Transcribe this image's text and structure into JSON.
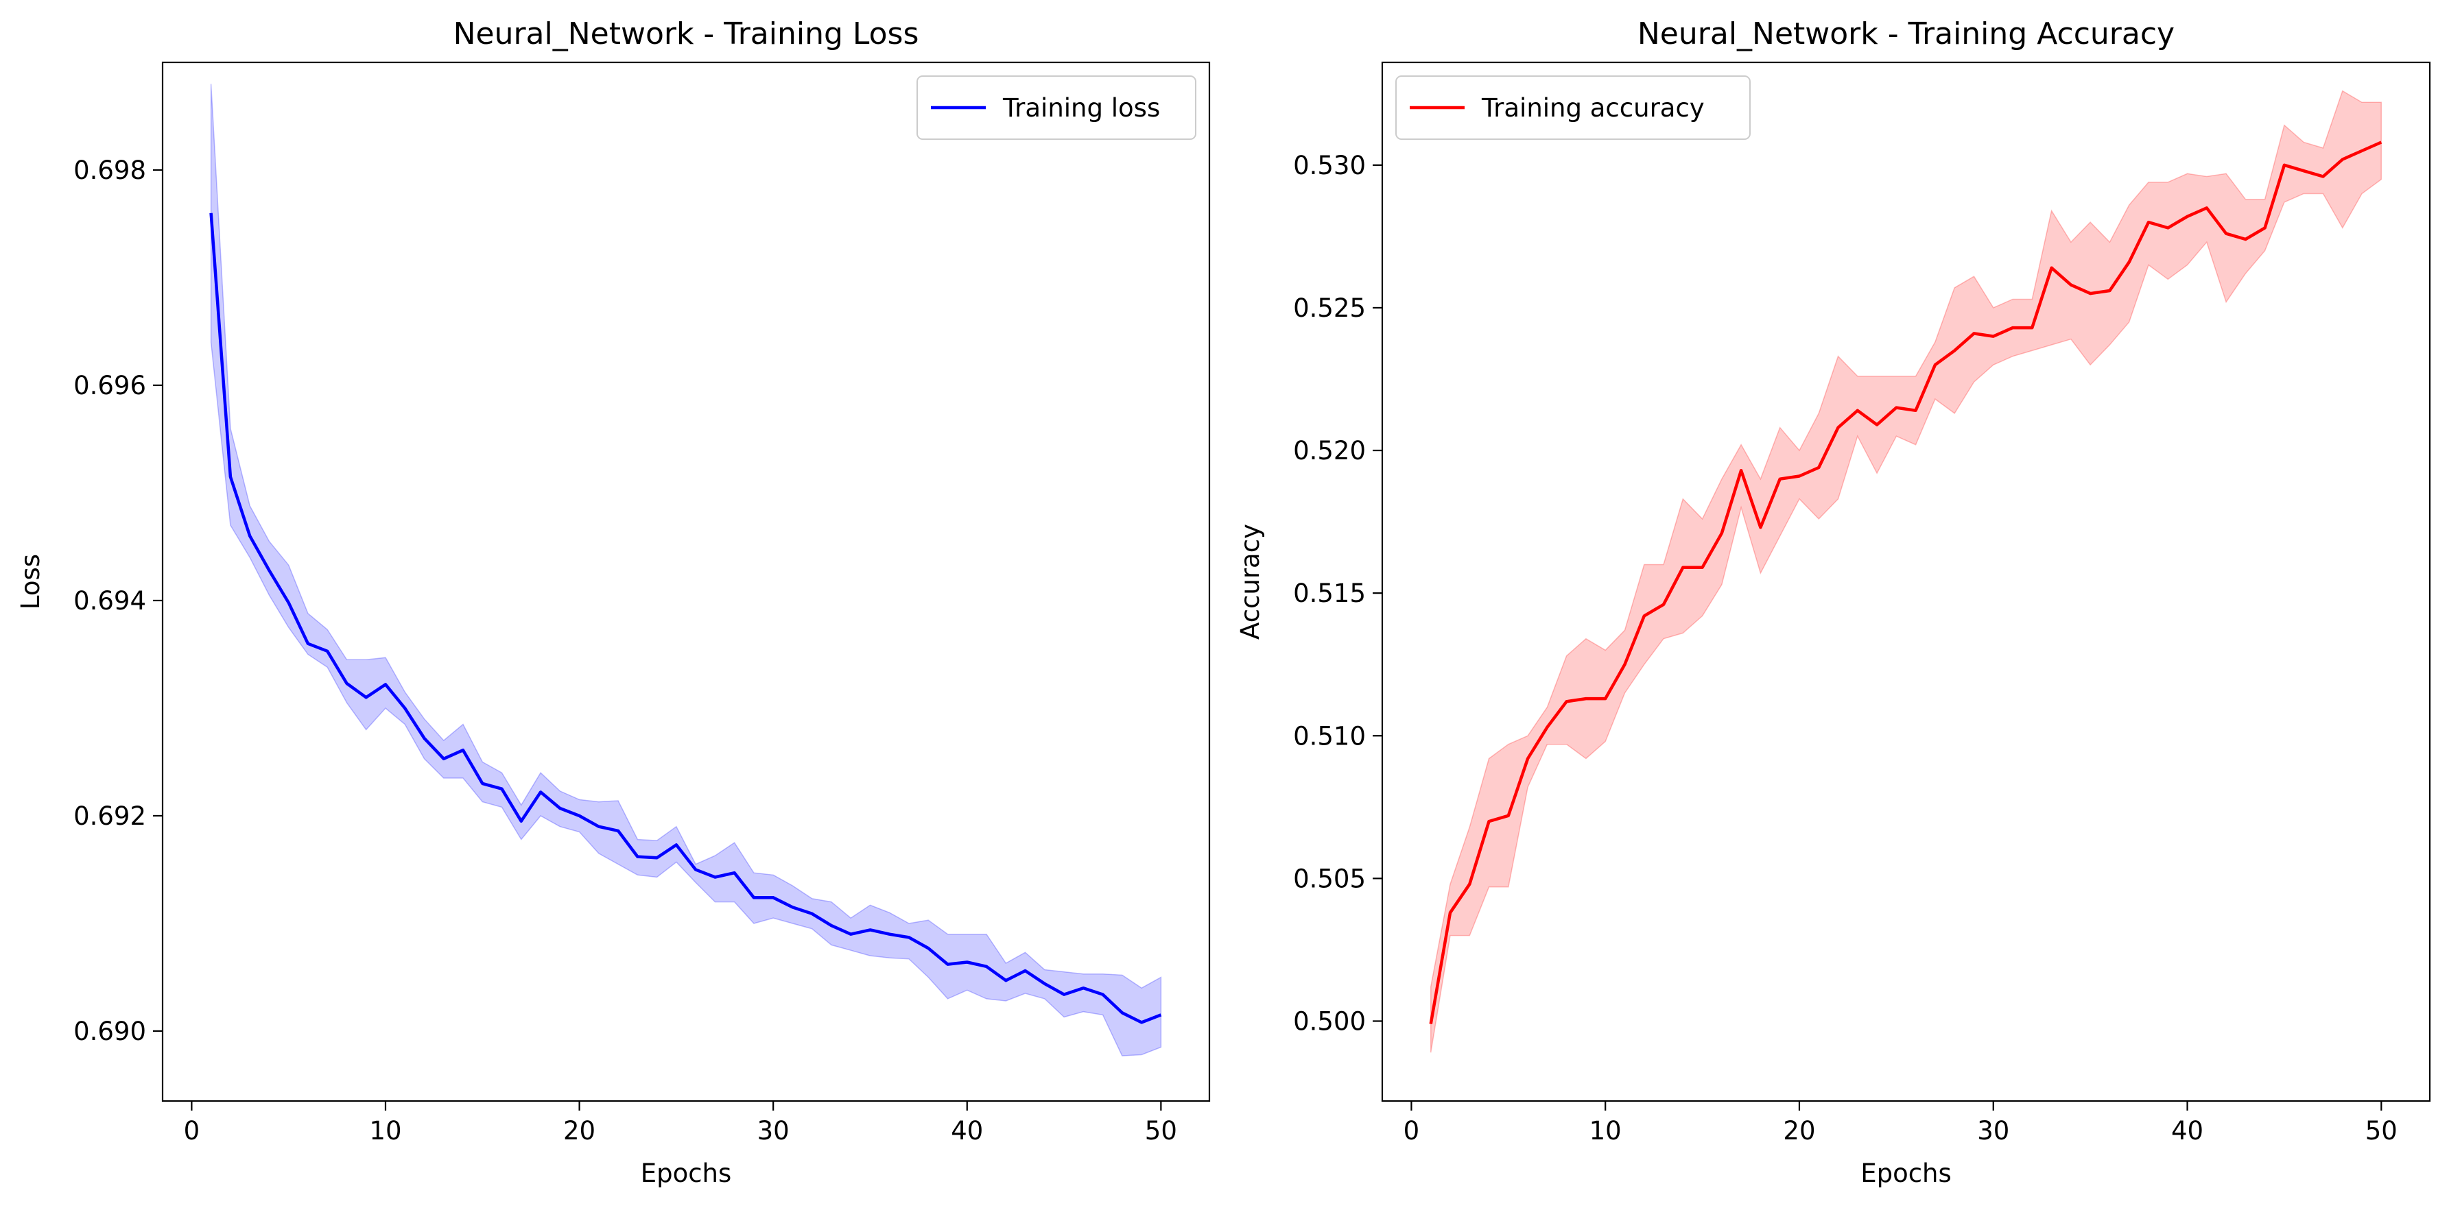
{
  "figure": {
    "subplots": [
      {
        "title": "Neural_Network - Training Loss",
        "xlabel": "Epochs",
        "ylabel": "Loss",
        "legend_label": "Training loss",
        "legend_position": "upper-right",
        "line_color": "#0000ff",
        "band_color": "#0000ff"
      },
      {
        "title": "Neural_Network - Training Accuracy",
        "xlabel": "Epochs",
        "ylabel": "Accuracy",
        "legend_label": "Training accuracy",
        "legend_position": "upper-left",
        "line_color": "#ff0000",
        "band_color": "#ff0000"
      }
    ]
  },
  "chart_data": [
    {
      "type": "line",
      "title": "Neural_Network - Training Loss",
      "xlabel": "Epochs",
      "ylabel": "Loss",
      "xlim": [
        -1.5,
        52.5
      ],
      "ylim": [
        0.68935,
        0.699
      ],
      "xticks": [
        0,
        10,
        20,
        30,
        40,
        50
      ],
      "xtick_labels": [
        "0",
        "10",
        "20",
        "30",
        "40",
        "50"
      ],
      "yticks": [
        0.69,
        0.692,
        0.694,
        0.696,
        0.698
      ],
      "ytick_labels": [
        "0.690",
        "0.692",
        "0.694",
        "0.696",
        "0.698"
      ],
      "grid": false,
      "legend": "upper-right",
      "series": [
        {
          "name": "Training loss",
          "color": "#0000ff",
          "x": [
            1,
            2,
            3,
            4,
            5,
            6,
            7,
            8,
            9,
            10,
            11,
            12,
            13,
            14,
            15,
            16,
            17,
            18,
            19,
            20,
            21,
            22,
            23,
            24,
            25,
            26,
            27,
            28,
            29,
            30,
            31,
            32,
            33,
            34,
            35,
            36,
            37,
            38,
            39,
            40,
            41,
            42,
            43,
            44,
            45,
            46,
            47,
            48,
            49,
            50
          ],
          "y": [
            0.6976,
            0.69515,
            0.6946,
            0.69428,
            0.69398,
            0.6936,
            0.69353,
            0.69323,
            0.6931,
            0.69322,
            0.693,
            0.69272,
            0.69253,
            0.69261,
            0.6923,
            0.69225,
            0.69195,
            0.69222,
            0.69207,
            0.692,
            0.6919,
            0.69186,
            0.69162,
            0.69161,
            0.69173,
            0.6915,
            0.69143,
            0.69147,
            0.69124,
            0.69124,
            0.69115,
            0.69109,
            0.69098,
            0.6909,
            0.69094,
            0.6909,
            0.69087,
            0.69077,
            0.69062,
            0.69064,
            0.6906,
            0.69047,
            0.69056,
            0.69044,
            0.69034,
            0.6904,
            0.69034,
            0.69017,
            0.69008,
            0.69015
          ],
          "band_low": [
            0.6964,
            0.6947,
            0.6944,
            0.69405,
            0.69375,
            0.6935,
            0.69338,
            0.69305,
            0.6928,
            0.693,
            0.69285,
            0.69253,
            0.69235,
            0.69235,
            0.69213,
            0.69208,
            0.69178,
            0.692,
            0.6919,
            0.69185,
            0.69165,
            0.69155,
            0.69145,
            0.69143,
            0.69157,
            0.69138,
            0.6912,
            0.6912,
            0.691,
            0.69105,
            0.691,
            0.69095,
            0.6908,
            0.69075,
            0.6907,
            0.69068,
            0.69067,
            0.6905,
            0.6903,
            0.69038,
            0.6903,
            0.69028,
            0.69035,
            0.6903,
            0.69013,
            0.69018,
            0.69015,
            0.68977,
            0.68978,
            0.68985
          ],
          "band_high": [
            0.6988,
            0.6956,
            0.69488,
            0.69455,
            0.69433,
            0.69388,
            0.69373,
            0.69345,
            0.69345,
            0.69347,
            0.69315,
            0.6929,
            0.6927,
            0.69285,
            0.6925,
            0.6924,
            0.6921,
            0.6924,
            0.69223,
            0.69215,
            0.69213,
            0.69214,
            0.69178,
            0.69177,
            0.6919,
            0.69155,
            0.69163,
            0.69175,
            0.69147,
            0.69145,
            0.69135,
            0.69123,
            0.6912,
            0.69105,
            0.69117,
            0.6911,
            0.691,
            0.69103,
            0.6909,
            0.6909,
            0.6909,
            0.69063,
            0.69073,
            0.69057,
            0.69055,
            0.69053,
            0.69053,
            0.69052,
            0.6904,
            0.6905
          ]
        }
      ]
    },
    {
      "type": "line",
      "title": "Neural_Network - Training Accuracy",
      "xlabel": "Epochs",
      "ylabel": "Accuracy",
      "xlim": [
        -1.5,
        52.5
      ],
      "ylim": [
        0.4972,
        0.5336
      ],
      "xticks": [
        0,
        10,
        20,
        30,
        40,
        50
      ],
      "xtick_labels": [
        "0",
        "10",
        "20",
        "30",
        "40",
        "50"
      ],
      "yticks": [
        0.5,
        0.505,
        0.51,
        0.515,
        0.52,
        0.525,
        0.53
      ],
      "ytick_labels": [
        "0.500",
        "0.505",
        "0.510",
        "0.515",
        "0.520",
        "0.525",
        "0.530"
      ],
      "grid": false,
      "legend": "upper-left",
      "series": [
        {
          "name": "Training accuracy",
          "color": "#ff0000",
          "x": [
            1,
            2,
            3,
            4,
            5,
            6,
            7,
            8,
            9,
            10,
            11,
            12,
            13,
            14,
            15,
            16,
            17,
            18,
            19,
            20,
            21,
            22,
            23,
            24,
            25,
            26,
            27,
            28,
            29,
            30,
            31,
            32,
            33,
            34,
            35,
            36,
            37,
            38,
            39,
            40,
            41,
            42,
            43,
            44,
            45,
            46,
            47,
            48,
            49,
            50
          ],
          "y": [
            0.4999,
            0.5038,
            0.5048,
            0.507,
            0.5072,
            0.5092,
            0.5103,
            0.5112,
            0.5113,
            0.5113,
            0.5125,
            0.5142,
            0.5146,
            0.5159,
            0.5159,
            0.5171,
            0.5193,
            0.5173,
            0.519,
            0.5191,
            0.5194,
            0.5208,
            0.5214,
            0.5209,
            0.5215,
            0.5214,
            0.523,
            0.5235,
            0.5241,
            0.524,
            0.5243,
            0.5243,
            0.5264,
            0.5258,
            0.5255,
            0.5256,
            0.5266,
            0.528,
            0.5278,
            0.5282,
            0.5285,
            0.5276,
            0.5274,
            0.5278,
            0.53,
            0.5298,
            0.5296,
            0.5302,
            0.5305,
            0.5308
          ],
          "band_low": [
            0.4989,
            0.503,
            0.503,
            0.5047,
            0.5047,
            0.5082,
            0.5097,
            0.5097,
            0.5092,
            0.5098,
            0.5115,
            0.5125,
            0.5134,
            0.5136,
            0.5142,
            0.5153,
            0.518,
            0.5157,
            0.517,
            0.5183,
            0.5176,
            0.5183,
            0.5205,
            0.5192,
            0.5205,
            0.5202,
            0.5218,
            0.5213,
            0.5224,
            0.523,
            0.5233,
            0.5235,
            0.5237,
            0.5239,
            0.523,
            0.5237,
            0.5245,
            0.5265,
            0.526,
            0.5265,
            0.5273,
            0.5252,
            0.5262,
            0.527,
            0.5287,
            0.529,
            0.529,
            0.5278,
            0.529,
            0.5295
          ],
          "band_high": [
            0.5012,
            0.5048,
            0.5068,
            0.5092,
            0.5097,
            0.51,
            0.511,
            0.5128,
            0.5134,
            0.513,
            0.5137,
            0.516,
            0.516,
            0.5183,
            0.5176,
            0.519,
            0.5202,
            0.519,
            0.5208,
            0.52,
            0.5213,
            0.5233,
            0.5226,
            0.5226,
            0.5226,
            0.5226,
            0.5238,
            0.5257,
            0.5261,
            0.525,
            0.5253,
            0.5253,
            0.5284,
            0.5273,
            0.528,
            0.5273,
            0.5286,
            0.5294,
            0.5294,
            0.5297,
            0.5296,
            0.5297,
            0.5288,
            0.5288,
            0.5314,
            0.5308,
            0.5306,
            0.5326,
            0.5322,
            0.5322
          ]
        }
      ]
    }
  ]
}
